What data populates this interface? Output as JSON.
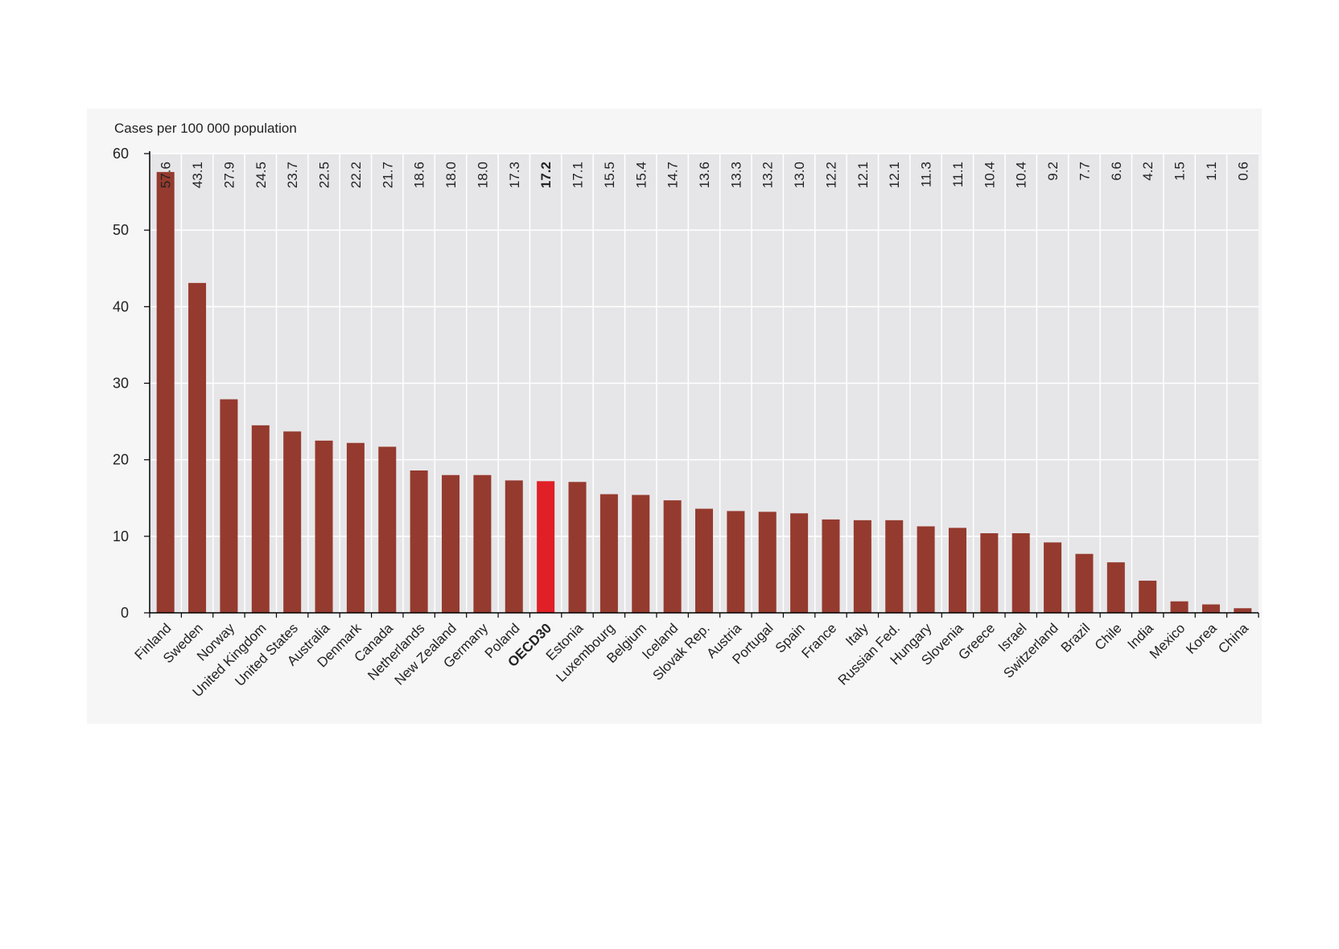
{
  "chart_data": {
    "type": "bar",
    "ylabel": "Cases per 100 000 population",
    "ylim": [
      0,
      60
    ],
    "yticks": [
      0,
      10,
      20,
      30,
      40,
      50,
      60
    ],
    "grid": true,
    "categories": [
      "Finland",
      "Sweden",
      "Norway",
      "United Kingdom",
      "United States",
      "Australia",
      "Denmark",
      "Canada",
      "Netherlands",
      "New Zealand",
      "Germany",
      "Poland",
      "OECD30",
      "Estonia",
      "Luxembourg",
      "Belgium",
      "Iceland",
      "Slovak Rep.",
      "Austria",
      "Portugal",
      "Spain",
      "France",
      "Italy",
      "Russian Fed.",
      "Hungary",
      "Slovenia",
      "Greece",
      "Israel",
      "Switzerland",
      "Brazil",
      "Chile",
      "India",
      "Mexico",
      "Korea",
      "China"
    ],
    "values": [
      57.6,
      43.1,
      27.9,
      24.5,
      23.7,
      22.5,
      22.2,
      21.7,
      18.6,
      18.0,
      18.0,
      17.3,
      17.2,
      17.1,
      15.5,
      15.4,
      14.7,
      13.6,
      13.3,
      13.2,
      13.0,
      12.2,
      12.1,
      12.1,
      11.3,
      11.1,
      10.4,
      10.4,
      9.2,
      7.7,
      6.6,
      4.2,
      1.5,
      1.1,
      0.6
    ],
    "value_labels": [
      "57.6",
      "43.1",
      "27.9",
      "24.5",
      "23.7",
      "22.5",
      "22.2",
      "21.7",
      "18.6",
      "18.0",
      "18.0",
      "17.3",
      "17.2",
      "17.1",
      "15.5",
      "15.4",
      "14.7",
      "13.6",
      "13.3",
      "13.2",
      "13.0",
      "12.2",
      "12.1",
      "12.1",
      "11.3",
      "11.1",
      "10.4",
      "10.4",
      "9.2",
      "7.7",
      "6.6",
      "4.2",
      "1.5",
      "1.1",
      "0.6"
    ],
    "highlight_category": "OECD30",
    "colors": {
      "bar": "#953a2e",
      "highlight": "#e01f26",
      "plot_bg": "#e6e6e8",
      "grid": "#ffffff",
      "outer_bg": "#f6f6f6"
    }
  }
}
